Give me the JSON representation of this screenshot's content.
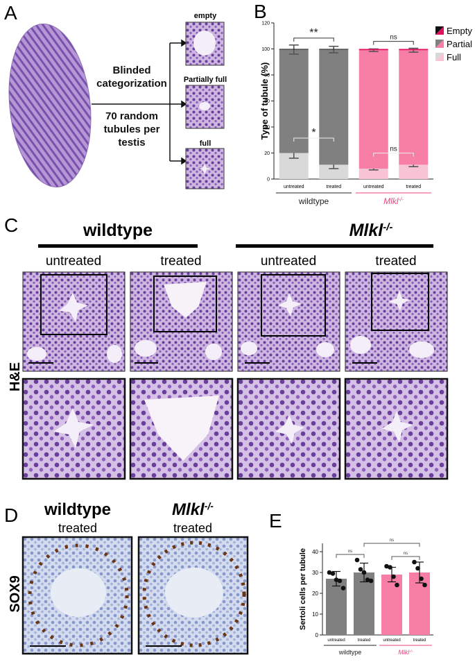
{
  "figure": {
    "panel_a": {
      "letter": "A",
      "process": "Blinded categorization",
      "sampling": "70 random tubules per testis",
      "outcomes": [
        "empty",
        "Partially full",
        "full"
      ]
    },
    "panel_c": {
      "letter": "C",
      "groups": [
        {
          "name": "wildtype",
          "conditions": [
            "untreated",
            "treated"
          ]
        },
        {
          "name": "Mlkl",
          "superscript": "-/-",
          "conditions": [
            "untreated",
            "treated"
          ]
        }
      ],
      "stain": "H&E"
    },
    "panel_d": {
      "letter": "D",
      "groups": [
        {
          "name": "wildtype",
          "condition": "treated"
        },
        {
          "name": "Mlkl",
          "superscript": "-/-",
          "condition": "treated"
        }
      ],
      "stain": "SOX9"
    }
  },
  "chart_data": [
    {
      "panel": "B",
      "type": "stacked_bar",
      "ylabel": "Type of tubule (%)",
      "ylim": [
        0,
        120
      ],
      "yticks": [
        0,
        20,
        40,
        60,
        80,
        100,
        120
      ],
      "groups": [
        {
          "name": "wildtype",
          "color": "#222222",
          "categories": [
            "untreated",
            "treated"
          ],
          "stack_comparison": "**",
          "full_comparison": "*"
        },
        {
          "name": "Mlkl",
          "superscript": "-/-",
          "italic": true,
          "color": "#e8457f",
          "categories": [
            "untreated",
            "treated"
          ],
          "stack_comparison": "ns",
          "full_comparison": "ns"
        }
      ],
      "series": [
        {
          "name": "Full",
          "colors": [
            "#d9d9d9",
            "#f8c3d5"
          ],
          "values": [
            20,
            11,
            8,
            11
          ],
          "errors": [
            4,
            3,
            1,
            1.5
          ]
        },
        {
          "name": "Partial",
          "colors": [
            "#808080",
            "#f77fa6"
          ],
          "values": [
            79.5,
            88.5,
            91,
            88
          ],
          "errors": [
            3.5,
            2.5,
            1,
            1.5
          ]
        },
        {
          "name": "Empty",
          "colors": [
            "#111111",
            "#e0115f"
          ],
          "values": [
            0.5,
            0.5,
            1,
            1
          ]
        }
      ]
    },
    {
      "panel": "E",
      "type": "bar_dot",
      "ylabel": "Sertoli cells per tubule",
      "ylim": [
        0,
        44
      ],
      "yticks": [
        0,
        10,
        20,
        30,
        40
      ],
      "groups": [
        {
          "name": "wildtype",
          "color": "#222222",
          "bar_color": "#808080",
          "categories": [
            "untreated",
            "treated"
          ],
          "comparison": "ns"
        },
        {
          "name": "Mlkl",
          "superscript": "-/-",
          "italic": true,
          "color": "#e8457f",
          "bar_color": "#f77fa6",
          "categories": [
            "untreated",
            "treated"
          ],
          "comparison": "ns"
        }
      ],
      "values": [
        27,
        30,
        29,
        30
      ],
      "errors": [
        3.5,
        4.5,
        3.5,
        5
      ],
      "points": [
        [
          30,
          29.5,
          26.5,
          26,
          22.5
        ],
        [
          36,
          31.5,
          30,
          26.5,
          26
        ],
        [
          33,
          32.5,
          28,
          24
        ],
        [
          35,
          32,
          27,
          24
        ]
      ],
      "treated_comparison": "ns"
    }
  ]
}
